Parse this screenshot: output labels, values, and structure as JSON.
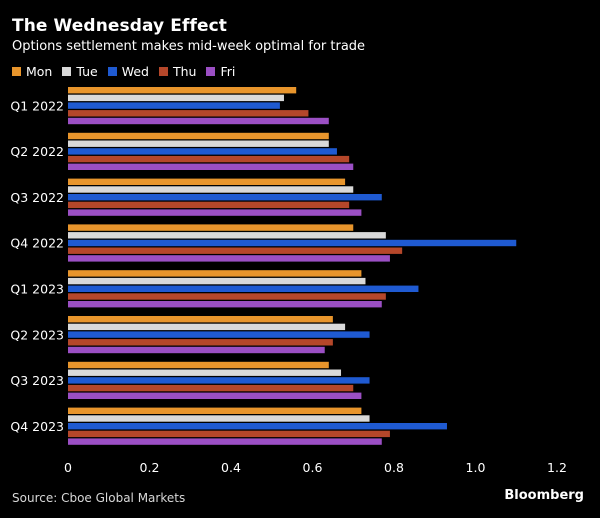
{
  "chart_data": {
    "type": "bar",
    "orientation": "horizontal",
    "title": "The Wednesday Effect",
    "subtitle": "Options settlement makes mid-week optimal for trade",
    "categories": [
      "Q1 2022",
      "Q2 2022",
      "Q3 2022",
      "Q4 2022",
      "Q1 2023",
      "Q2 2023",
      "Q3 2023",
      "Q4 2023"
    ],
    "series": [
      {
        "name": "Mon",
        "color": "#e8952c",
        "values": [
          0.56,
          0.64,
          0.68,
          0.7,
          0.72,
          0.65,
          0.64,
          0.72
        ]
      },
      {
        "name": "Tue",
        "color": "#d9d9d9",
        "values": [
          0.53,
          0.64,
          0.7,
          0.78,
          0.73,
          0.68,
          0.67,
          0.74
        ]
      },
      {
        "name": "Wed",
        "color": "#1f5ad1",
        "values": [
          0.52,
          0.66,
          0.77,
          1.1,
          0.86,
          0.74,
          0.74,
          0.93
        ]
      },
      {
        "name": "Thu",
        "color": "#b5472a",
        "values": [
          0.59,
          0.69,
          0.69,
          0.82,
          0.78,
          0.65,
          0.7,
          0.79
        ]
      },
      {
        "name": "Fri",
        "color": "#9b4fc4",
        "values": [
          0.64,
          0.7,
          0.72,
          0.79,
          0.77,
          0.63,
          0.72,
          0.77
        ]
      }
    ],
    "xlim": [
      0,
      1.2
    ],
    "xticks": [
      "0",
      "0.2",
      "0.4",
      "0.6",
      "0.8",
      "1.0",
      "1.2"
    ],
    "grid": false,
    "legend_position": "top-left"
  },
  "footer": {
    "source": "Source: Cboe Global Markets",
    "logo": "Bloomberg"
  }
}
